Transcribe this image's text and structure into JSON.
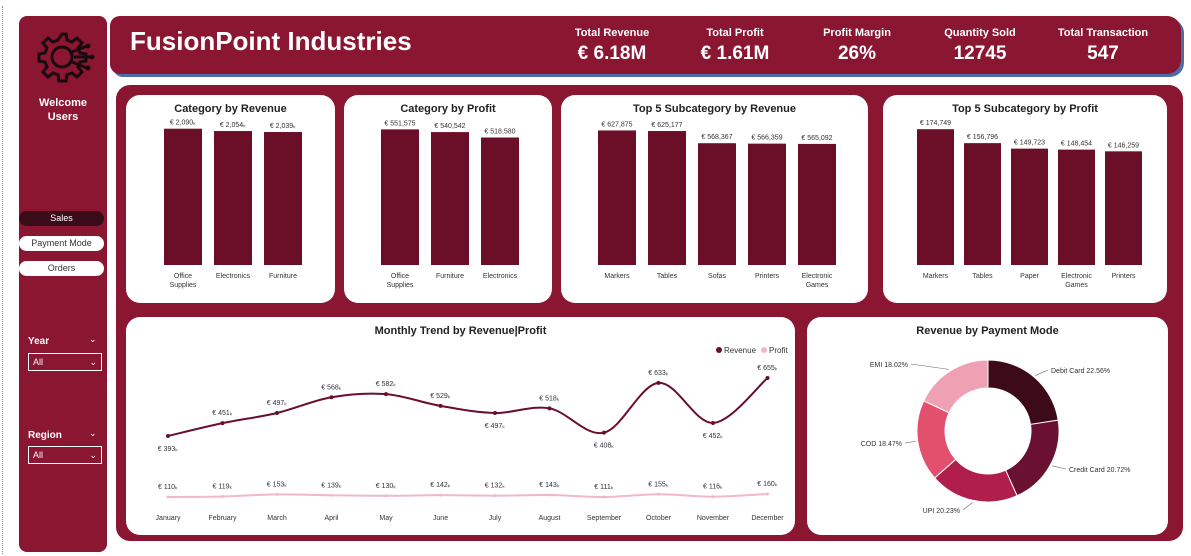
{
  "sidebar": {
    "welcome": "Welcome Users",
    "nav": [
      {
        "label": "Sales",
        "active": true
      },
      {
        "label": "Payment Mode",
        "active": false
      },
      {
        "label": "Orders",
        "active": false
      }
    ],
    "filters": [
      {
        "label": "Year",
        "value": "All"
      },
      {
        "label": "Region",
        "value": "All"
      }
    ],
    "logo_icon": "gear-circuit-icon"
  },
  "header": {
    "brand": "FusionPoint Industries",
    "kpis": [
      {
        "label": "Total Revenue",
        "value": "€ 6.18M"
      },
      {
        "label": "Total Profit",
        "value": "€ 1.61M"
      },
      {
        "label": "Profit Margin",
        "value": "26%"
      },
      {
        "label": "Quantity Sold",
        "value": "12745"
      },
      {
        "label": "Total Transaction",
        "value": "547"
      }
    ]
  },
  "colors": {
    "brand": "#8a1632",
    "bar": "#6a0f27",
    "revenue_line": "#6a0f27",
    "profit_line": "#f2b8c6",
    "pie": [
      "#3d0a18",
      "#6a1030",
      "#b01e4c",
      "#e2506e",
      "#f0a0b3"
    ]
  },
  "chart_data": [
    {
      "type": "bar",
      "title": "Category by Revenue",
      "categories": [
        "Office Supplies",
        "Electronics",
        "Furniture"
      ],
      "values": [
        2090,
        2054,
        2039
      ],
      "labels": [
        "€ 2,090ₖ",
        "€ 2,054ₖ",
        "€ 2,039ₖ"
      ],
      "ylim": [
        0,
        2300
      ]
    },
    {
      "type": "bar",
      "title": "Category by Profit",
      "categories": [
        "Office Supplies",
        "Furniture",
        "Electronics"
      ],
      "values": [
        551575,
        540542,
        518580
      ],
      "labels": [
        "€ 551,575",
        "€ 540,542",
        "€ 518,580"
      ],
      "ylim": [
        0,
        610000
      ]
    },
    {
      "type": "bar",
      "title": "Top 5 Subcategory by Revenue",
      "categories": [
        "Markers",
        "Tables",
        "Sofas",
        "Printers",
        "Electronic Games"
      ],
      "values": [
        627875,
        625177,
        568367,
        566359,
        565092
      ],
      "labels": [
        "€ 627,875",
        "€ 625,177",
        "€ 568,367",
        "€ 566,359",
        "€ 565,092"
      ],
      "ylim": [
        0,
        700000
      ]
    },
    {
      "type": "bar",
      "title": "Top 5 Subcategory by Profit",
      "categories": [
        "Markers",
        "Tables",
        "Paper",
        "Electronic Games",
        "Printers"
      ],
      "values": [
        174749,
        156796,
        149723,
        148454,
        146259
      ],
      "labels": [
        "€ 174,749",
        "€ 156,796",
        "€ 149,723",
        "€ 148,454",
        "€ 146,259"
      ],
      "ylim": [
        0,
        193000
      ]
    },
    {
      "type": "line",
      "title": "Monthly Trend by Revenue|Profit",
      "categories": [
        "January",
        "February",
        "March",
        "April",
        "May",
        "June",
        "July",
        "August",
        "September",
        "October",
        "November",
        "December"
      ],
      "series": [
        {
          "name": "Revenue",
          "values": [
            393,
            451,
            497,
            568,
            582,
            529,
            497,
            518,
            408,
            633,
            452,
            655
          ],
          "labels": [
            "€ 393ₖ",
            "€ 451ₖ",
            "€ 497ₖ",
            "€ 568ₖ",
            "€ 582ₖ",
            "€ 529ₖ",
            "€ 497ₖ",
            "€ 518ₖ",
            "€ 408ₖ",
            "€ 633ₖ",
            "€ 452ₖ",
            "€ 655ₖ"
          ]
        },
        {
          "name": "Profit",
          "values": [
            110,
            119,
            153,
            139,
            130,
            142,
            132,
            143,
            111,
            155,
            116,
            160
          ],
          "labels": [
            "€ 110ₖ",
            "€ 119ₖ",
            "€ 153ₖ",
            "€ 139ₖ",
            "€ 130ₖ",
            "€ 142ₖ",
            "€ 132ₖ",
            "€ 143ₖ",
            "€ 111ₖ",
            "€ 155ₖ",
            "€ 116ₖ",
            "€ 160ₖ"
          ]
        }
      ],
      "legend": "top-right"
    },
    {
      "type": "pie",
      "title": "Revenue by Payment Mode",
      "categories": [
        "Debit Card",
        "Credit Card",
        "UPI",
        "COD",
        "EMI"
      ],
      "values": [
        22.56,
        20.72,
        20.23,
        18.47,
        18.02
      ],
      "labels": [
        "Debit Card 22.56%",
        "Credit Card 20.72%",
        "UPI 20.23%",
        "COD 18.47%",
        "EMI 18.02%"
      ]
    }
  ]
}
